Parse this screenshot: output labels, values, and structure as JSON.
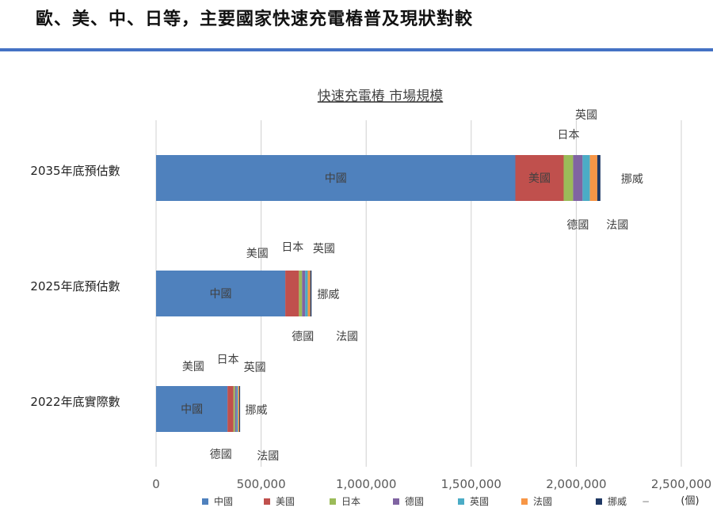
{
  "page": {
    "title": "歐、美、中、日等，主要國家快速充電樁普及現狀對較"
  },
  "chart_data": {
    "type": "bar",
    "orientation": "horizontal",
    "stacked": true,
    "title": "快速充電樁 市場規模",
    "unit": "(個)",
    "categories": [
      "2035年底預估數",
      "2025年底預估數",
      "2022年底實際數"
    ],
    "series": [
      {
        "name": "中國",
        "color": "#4F81BD",
        "values": [
          1710000,
          615000,
          340000
        ]
      },
      {
        "name": "美國",
        "color": "#C0504D",
        "values": [
          230000,
          65000,
          28000
        ]
      },
      {
        "name": "日本",
        "color": "#9BBB59",
        "values": [
          45000,
          15000,
          8000
        ]
      },
      {
        "name": "德國",
        "color": "#8064A2",
        "values": [
          45000,
          15000,
          8000
        ]
      },
      {
        "name": "英國",
        "color": "#4BACC6",
        "values": [
          35000,
          12000,
          6000
        ]
      },
      {
        "name": "法國",
        "color": "#F79646",
        "values": [
          35000,
          12000,
          6000
        ]
      },
      {
        "name": "挪威",
        "color": "#1F3864",
        "values": [
          15000,
          6000,
          4000
        ]
      }
    ],
    "xlim": [
      0,
      2500000
    ],
    "xticks": [
      0,
      500000,
      1000000,
      1500000,
      2000000,
      2500000
    ],
    "xtick_labels": [
      "0",
      "500,000",
      "1,000,000",
      "1,500,000",
      "2,000,000",
      "2,500,000"
    ],
    "grid": true,
    "legend_position": "bottom",
    "legend_extra": "−"
  }
}
